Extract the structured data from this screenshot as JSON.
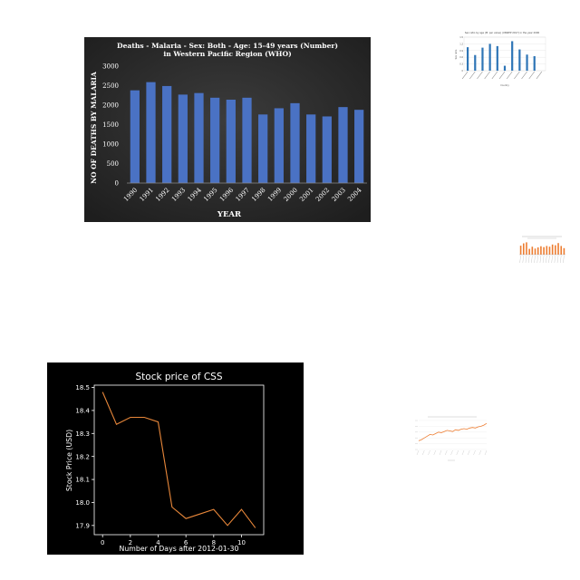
{
  "chart_data": [
    {
      "type": "bar",
      "title": "Deaths - Malaria - Sex: Both - Age: 15-49 years (Number) in Western Pacific Region (WHO)",
      "xlabel": "YEAR",
      "ylabel": "NO OF DEATHS BY MALARIA",
      "categories": [
        "1990",
        "1991",
        "1992",
        "1993",
        "1994",
        "1995",
        "1996",
        "1997",
        "1998",
        "1999",
        "2000",
        "2001",
        "2002",
        "2003",
        "2004"
      ],
      "values": [
        2380,
        2590,
        2490,
        2270,
        2310,
        2190,
        2140,
        2190,
        1760,
        1920,
        2050,
        1760,
        1710,
        1950,
        1880
      ],
      "ylim": [
        0,
        3000
      ],
      "yticks": [
        "0",
        "500",
        "1000",
        "1500",
        "2000",
        "2500",
        "3000"
      ],
      "grid": false,
      "colors": {
        "bar": "#4a72c4",
        "background": "#2e2e2e",
        "text": "#ffffff"
      }
    },
    {
      "type": "bar",
      "title": "Sex ratio by age (M: per value) (UNWPP 2017) in the year 2000",
      "xlabel": "Country",
      "ylabel": "Sex ratio",
      "categories": [
        "",
        "",
        "",
        "",
        "",
        "",
        "",
        "",
        "",
        "",
        ""
      ],
      "values": [
        1.05,
        0.7,
        1.03,
        1.2,
        1.1,
        0.22,
        1.32,
        0.95,
        0.72,
        0.65,
        0.0
      ],
      "ylim": [
        0,
        1.5
      ],
      "yticks": [
        "0",
        "0.3",
        "0.6",
        "0.9",
        "1.2",
        "1.5"
      ],
      "grid": true,
      "colors": {
        "bar": "#2e75b6",
        "background": "#ffffff"
      }
    },
    {
      "type": "bar",
      "title": "",
      "xlabel": "",
      "ylabel": "",
      "categories": [
        "",
        "",
        "",
        "",
        "",
        "",
        "",
        "",
        "",
        "",
        "",
        "",
        "",
        "",
        "",
        ""
      ],
      "values": [
        0.62,
        0.78,
        0.85,
        0.4,
        0.55,
        0.42,
        0.5,
        0.58,
        0.52,
        0.6,
        0.55,
        0.7,
        0.65,
        0.8,
        0.6,
        0.45
      ],
      "ylim": [
        0,
        1
      ],
      "grid": false,
      "colors": {
        "bar": "#ed7d31",
        "background": "#ffffff"
      }
    },
    {
      "type": "line",
      "title": "Stock price of CSS",
      "xlabel": "Number of Days after 2012-01-30",
      "ylabel": "Stock Price (USD)",
      "x": [
        0,
        1,
        2,
        3,
        4,
        5,
        6,
        7,
        8,
        9,
        10,
        11
      ],
      "y": [
        18.48,
        18.34,
        18.37,
        18.37,
        18.35,
        17.98,
        17.93,
        17.95,
        17.97,
        17.9,
        17.97,
        17.89
      ],
      "xlim": [
        -0.6,
        11.6
      ],
      "ylim": [
        17.86,
        18.51
      ],
      "xticks": [
        "0",
        "2",
        "4",
        "6",
        "8",
        "10"
      ],
      "yticks": [
        "17.9",
        "18.0",
        "18.1",
        "18.2",
        "18.3",
        "18.4",
        "18.5"
      ],
      "grid": false,
      "colors": {
        "line": "#e8873a",
        "background": "#000000",
        "text": "#ffffff"
      }
    },
    {
      "type": "line",
      "title": "",
      "xlabel": "",
      "ylabel": "",
      "x": [
        0,
        1,
        2,
        3,
        4,
        5,
        6,
        7,
        8,
        9,
        10,
        11,
        12,
        13,
        14,
        15,
        16,
        17,
        18,
        19,
        20,
        21,
        22,
        23,
        24
      ],
      "y": [
        30,
        34,
        40,
        46,
        52,
        50,
        55,
        60,
        58,
        62,
        66,
        64,
        62,
        68,
        66,
        70,
        72,
        70,
        74,
        76,
        74,
        78,
        80,
        84,
        90
      ],
      "ylim": [
        0,
        100
      ],
      "grid": true,
      "colors": {
        "line": "#ed7d31",
        "background": "#ffffff"
      }
    }
  ]
}
